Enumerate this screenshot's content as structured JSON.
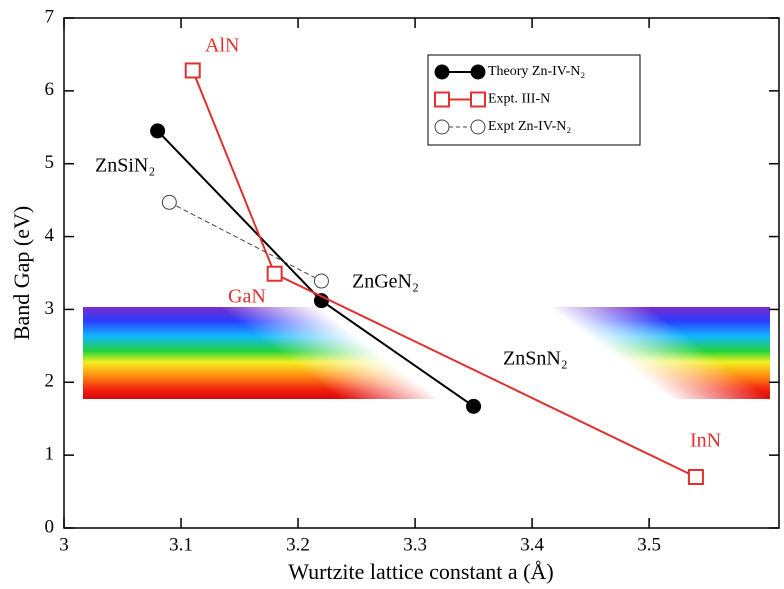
{
  "chart_data": {
    "type": "line",
    "xlabel": "Wurtzite lattice constant  a (Å)",
    "ylabel": "Band Gap (eV)",
    "xlim": [
      3,
      3.611
    ],
    "ylim": [
      0,
      7
    ],
    "xticks": [
      3,
      3.1,
      3.2,
      3.3,
      3.4,
      3.5
    ],
    "yticks": [
      0,
      1,
      2,
      3,
      4,
      5,
      6,
      7
    ],
    "series": [
      {
        "name": "Theory Zn-IV-N₂",
        "color": "#000000",
        "marker": "filled-circle",
        "dashed": false,
        "x": [
          3.08,
          3.22,
          3.35
        ],
        "values": [
          5.45,
          3.12,
          1.67
        ]
      },
      {
        "name": "Expt. III-N",
        "color": "#e03030",
        "marker": "open-square",
        "dashed": false,
        "x": [
          3.11,
          3.18,
          3.54
        ],
        "values": [
          6.28,
          3.49,
          0.7
        ]
      },
      {
        "name": "Expt Zn-IV-N₂",
        "color": "#444444",
        "marker": "open-circle",
        "dashed": true,
        "x": [
          3.09,
          3.22
        ],
        "values": [
          4.47,
          3.39
        ]
      }
    ],
    "annotations": [
      {
        "text": "AlN",
        "color": "#e03030"
      },
      {
        "text": "ZnSiN₂",
        "color": "#000000"
      },
      {
        "text": "GaN",
        "color": "#e03030"
      },
      {
        "text": "ZnGeN₂",
        "color": "#000000"
      },
      {
        "text": "ZnSnN₂",
        "color": "#000000"
      },
      {
        "text": "InN",
        "color": "#e03030"
      }
    ]
  }
}
